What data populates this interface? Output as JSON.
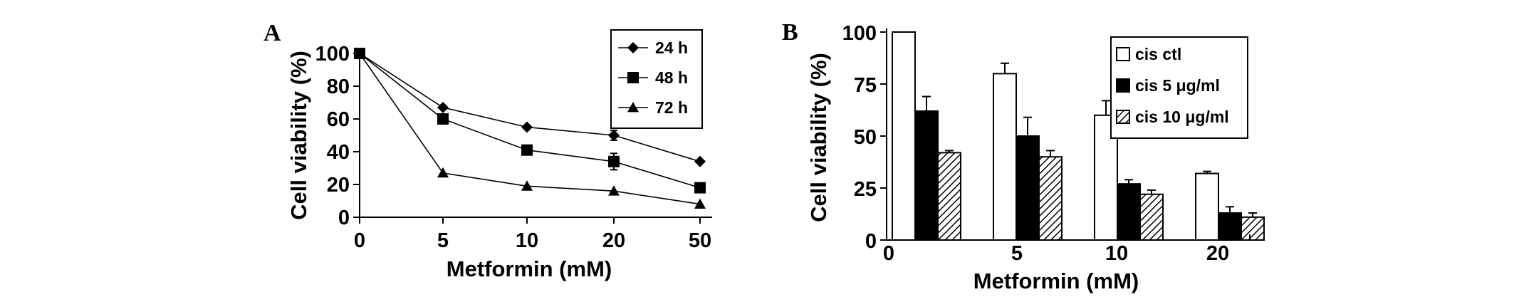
{
  "chart_data": [
    {
      "panel_label": "A",
      "type": "line",
      "xlabel": "Metformin (mM)",
      "ylabel": "Cell viability (%)",
      "categories": [
        "0",
        "5",
        "10",
        "20",
        "50"
      ],
      "yticks": [
        0,
        20,
        40,
        60,
        80,
        100
      ],
      "ylim": [
        0,
        100
      ],
      "legend_position": "top-right",
      "grid": false,
      "series": [
        {
          "name": "24 h",
          "marker": "diamond",
          "values": [
            100,
            67,
            55,
            50,
            34
          ],
          "errors": [
            0,
            0,
            0,
            3,
            0
          ]
        },
        {
          "name": "48 h",
          "marker": "square",
          "values": [
            100,
            60,
            41,
            34,
            18
          ],
          "errors": [
            0,
            0,
            0,
            5,
            0
          ]
        },
        {
          "name": "72 h",
          "marker": "triangle",
          "values": [
            100,
            27,
            19,
            16,
            8
          ],
          "errors": [
            0,
            0,
            0,
            0,
            0
          ]
        }
      ]
    },
    {
      "panel_label": "B",
      "type": "bar",
      "xlabel": "Metformin (mM)",
      "ylabel": "Cell viability (%)",
      "categories": [
        "0",
        "5",
        "10",
        "20"
      ],
      "yticks": [
        0,
        25,
        50,
        75,
        100
      ],
      "ylim": [
        0,
        100
      ],
      "legend_position": "top-right",
      "grid": false,
      "series": [
        {
          "name": "cis ctl",
          "fill": "white",
          "values": [
            100,
            80,
            60,
            32
          ],
          "errors": [
            0,
            5,
            7,
            1
          ]
        },
        {
          "name": "cis 5 μg/ml",
          "fill": "black",
          "values": [
            62,
            50,
            27,
            13
          ],
          "errors": [
            7,
            9,
            2,
            3
          ]
        },
        {
          "name": "cis 10 μg/ml",
          "fill": "hatched",
          "values": [
            42,
            40,
            22,
            11
          ],
          "errors": [
            1,
            3,
            2,
            2
          ]
        }
      ]
    }
  ]
}
